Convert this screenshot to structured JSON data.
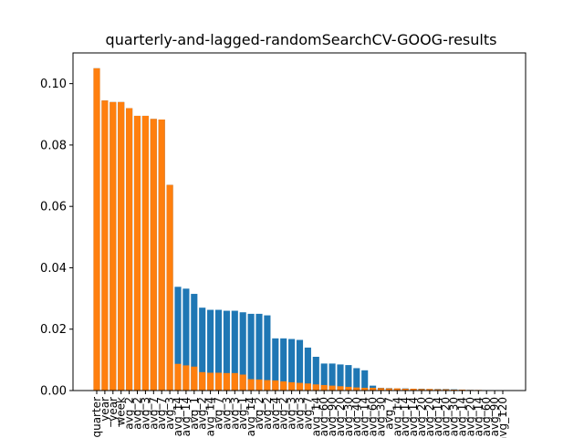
{
  "chart_data": {
    "type": "bar",
    "title": "quarterly-and-lagged-randomSearchCV-GOOG-results",
    "xlabel": "",
    "ylabel": "",
    "ylim": [
      0,
      0.11
    ],
    "yticks": [
      "0.00",
      "0.02",
      "0.04",
      "0.06",
      "0.08",
      "0.10"
    ],
    "grid": false,
    "legend": "none",
    "colors": {
      "series_a": "#1f77b4",
      "series_b": "#ff7f0e"
    },
    "categories": [
      "quarter",
      "_year",
      "_year",
      "week",
      "avg_2",
      "avg_2",
      "avg_3",
      "avg_7",
      "avg_7",
      "avg_3",
      "avg_14",
      "avg_14",
      "avg_1",
      "avg_2",
      "avg_14",
      "avg_7",
      "avg_3",
      "avg_3",
      "avg_1",
      "avg_14",
      "avg_2",
      "avg_2",
      "avg_4",
      "avg_2",
      "avg_3",
      "avg_3",
      "avg_7",
      "avg_14",
      "avg_60",
      "avg_90",
      "avg_20",
      "avg_30",
      "avg_40",
      "avg_14",
      "avg_60",
      "avg_30",
      "avg_7",
      "avg_14",
      "avg_14",
      "avg_14",
      "avg_20",
      "avg_20",
      "avg_14",
      "avg_20",
      "avg_30",
      "avg_14",
      "avg_20",
      "avg_14",
      "avg_60",
      "avg_90",
      "avg_120"
    ],
    "series": [
      {
        "color": "#1f77b4",
        "values": [
          0.105,
          0.0945,
          0.094,
          0.094,
          0.092,
          0.0895,
          0.0895,
          0.0885,
          0.0883,
          0.067,
          0.0338,
          0.0332,
          0.0315,
          0.027,
          0.0263,
          0.0263,
          0.026,
          0.026,
          0.0255,
          0.025,
          0.025,
          0.0245,
          0.017,
          0.017,
          0.0168,
          0.0165,
          0.014,
          0.011,
          0.0088,
          0.0088,
          0.0085,
          0.0083,
          0.0073,
          0.0066,
          0.0016,
          0.0009,
          0.0008,
          0.0007,
          0.0007,
          0.0006,
          0.0006,
          0.0005,
          0.0005,
          0.0005,
          0.0004,
          0.0003,
          0.0002,
          0.0001,
          0.0001,
          0.0001,
          0.0001
        ]
      },
      {
        "color": "#ff7f0e",
        "values": [
          0.105,
          0.0945,
          0.094,
          0.094,
          0.092,
          0.0895,
          0.0895,
          0.0885,
          0.0883,
          0.067,
          0.0087,
          0.0082,
          0.0078,
          0.006,
          0.0058,
          0.0058,
          0.0057,
          0.0057,
          0.0052,
          0.0037,
          0.0036,
          0.0034,
          0.0033,
          0.003,
          0.0027,
          0.0025,
          0.0023,
          0.002,
          0.0018,
          0.0016,
          0.0014,
          0.0012,
          0.001,
          0.0009,
          0.0009,
          0.0008,
          0.0007,
          0.0007,
          0.0006,
          0.0006,
          0.0005,
          0.0005,
          0.0004,
          0.0004,
          0.0003,
          0.0003,
          0.0002,
          0.0002,
          0.0001,
          0.0001,
          0.0001
        ]
      }
    ]
  }
}
